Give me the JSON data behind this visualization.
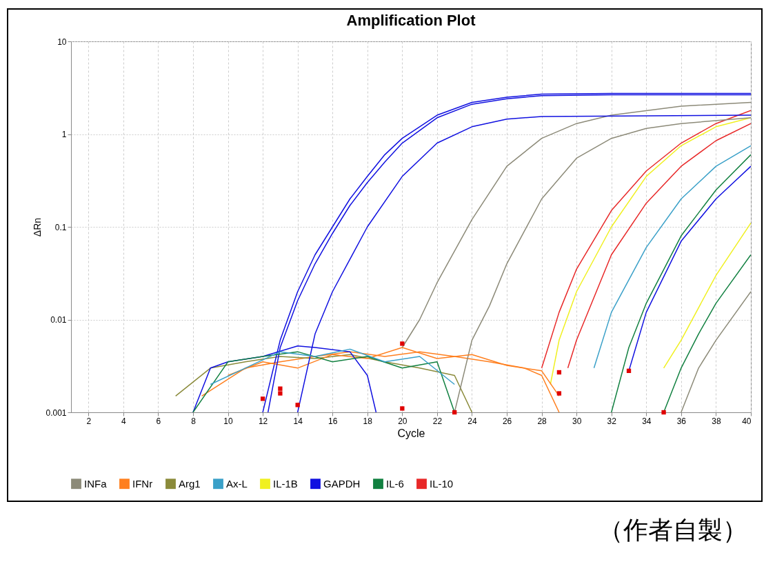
{
  "chart_data": {
    "type": "line",
    "title": "Amplification Plot",
    "xlabel": "Cycle",
    "ylabel": "ΔRn",
    "log": true,
    "grid": true,
    "legend": "bottom",
    "marker": "none",
    "line_style": "solid",
    "xlim": [
      1,
      40
    ],
    "xticks": [
      2,
      4,
      6,
      8,
      10,
      12,
      14,
      16,
      18,
      20,
      22,
      24,
      26,
      28,
      30,
      32,
      34,
      36,
      38,
      40
    ],
    "ylim": [
      0.001,
      10
    ],
    "yticks": [
      0.001,
      0.01,
      0.1,
      1,
      10
    ],
    "series": [
      {
        "name": "INFa",
        "color": "#8c8a78",
        "x": [
          20,
          21,
          22,
          24,
          26,
          28,
          30,
          32,
          36,
          40
        ],
        "values": [
          0.005,
          0.01,
          0.025,
          0.12,
          0.45,
          0.9,
          1.3,
          1.6,
          2.0,
          2.2
        ]
      },
      {
        "name": "IFNr",
        "color": "#ff7f1e",
        "x": [
          8.5,
          11,
          13,
          15,
          17,
          19,
          21,
          23,
          25,
          27,
          28,
          29
        ],
        "values": [
          0.0015,
          0.003,
          0.0035,
          0.004,
          0.0045,
          0.004,
          0.0045,
          0.004,
          0.0035,
          0.003,
          0.0025,
          0.001
        ]
      },
      {
        "name": "Arg1",
        "color": "#8a8a3a",
        "x": [
          7,
          9,
          11,
          13,
          15,
          17,
          19,
          21,
          23,
          24
        ],
        "values": [
          0.0015,
          0.003,
          0.0035,
          0.004,
          0.0038,
          0.0042,
          0.0035,
          0.003,
          0.0025,
          0.001
        ]
      },
      {
        "name": "Ax-L",
        "color": "#3aa0c8",
        "x": [
          31,
          32,
          34,
          36,
          38,
          40
        ],
        "values": [
          0.003,
          0.012,
          0.06,
          0.2,
          0.45,
          0.75
        ]
      },
      {
        "name": "IL-1B",
        "color": "#f0f020",
        "x": [
          28.5,
          29,
          30,
          32,
          34,
          36,
          38,
          40
        ],
        "values": [
          0.002,
          0.006,
          0.02,
          0.1,
          0.35,
          0.75,
          1.2,
          1.5
        ]
      },
      {
        "name": "GAPDH",
        "color": "#1010e0",
        "x": [
          12,
          13,
          14,
          15,
          16,
          17,
          18,
          19,
          20,
          22,
          24,
          26,
          28,
          32,
          40
        ],
        "values": [
          0.001,
          0.006,
          0.02,
          0.05,
          0.1,
          0.2,
          0.35,
          0.6,
          0.9,
          1.6,
          2.2,
          2.5,
          2.7,
          2.75,
          2.75
        ]
      },
      {
        "name": "IL-6",
        "color": "#118040",
        "x": [
          32,
          33,
          34,
          36,
          38,
          40
        ],
        "values": [
          0.001,
          0.005,
          0.015,
          0.08,
          0.25,
          0.6
        ]
      },
      {
        "name": "IL-10",
        "color": "#e82828",
        "x": [
          28,
          29,
          30,
          32,
          34,
          36,
          38,
          40
        ],
        "values": [
          0.003,
          0.012,
          0.035,
          0.15,
          0.4,
          0.8,
          1.3,
          1.8
        ]
      },
      {
        "color": "#8c8a78",
        "x": [
          23,
          24,
          25,
          26,
          28,
          30,
          32,
          34,
          36,
          40
        ],
        "values": [
          0.001,
          0.006,
          0.014,
          0.04,
          0.2,
          0.55,
          0.9,
          1.15,
          1.3,
          1.5
        ]
      },
      {
        "color": "#8c8a78",
        "x": [
          36,
          37,
          38,
          40
        ],
        "values": [
          0.001,
          0.003,
          0.006,
          0.02
        ]
      },
      {
        "color": "#ff7f1e",
        "x": [
          10,
          12,
          14,
          16,
          18,
          20,
          22,
          24,
          26,
          28,
          29
        ],
        "values": [
          0.0025,
          0.0035,
          0.003,
          0.0042,
          0.0038,
          0.005,
          0.0038,
          0.0042,
          0.0032,
          0.0028,
          0.0015
        ]
      },
      {
        "color": "#1010e0",
        "x": [
          12.3,
          13,
          14,
          15,
          16,
          17,
          18,
          19,
          20,
          22,
          24,
          26,
          28,
          32,
          40
        ],
        "values": [
          0.001,
          0.005,
          0.016,
          0.04,
          0.085,
          0.17,
          0.3,
          0.5,
          0.8,
          1.5,
          2.1,
          2.4,
          2.6,
          2.65,
          2.65
        ]
      },
      {
        "color": "#1010e0",
        "x": [
          14,
          15,
          16,
          18,
          20,
          22,
          24,
          26,
          28,
          40
        ],
        "values": [
          0.001,
          0.007,
          0.02,
          0.1,
          0.35,
          0.8,
          1.2,
          1.45,
          1.55,
          1.6
        ]
      },
      {
        "color": "#1010e0",
        "x": [
          33,
          34,
          36,
          38,
          40
        ],
        "values": [
          0.0028,
          0.012,
          0.07,
          0.2,
          0.45
        ]
      },
      {
        "color": "#1010e0",
        "x": [
          8,
          9,
          10,
          12,
          14,
          15,
          17,
          18,
          18.5
        ],
        "values": [
          0.001,
          0.003,
          0.0035,
          0.004,
          0.0052,
          0.005,
          0.0045,
          0.0025,
          0.001
        ]
      },
      {
        "color": "#e82828",
        "x": [
          29.5,
          30,
          32,
          34,
          36,
          38,
          40
        ],
        "values": [
          0.003,
          0.006,
          0.05,
          0.18,
          0.45,
          0.85,
          1.3
        ]
      },
      {
        "color": "#f0f020",
        "x": [
          35,
          36,
          38,
          40
        ],
        "values": [
          0.003,
          0.006,
          0.03,
          0.11
        ]
      },
      {
        "color": "#118040",
        "x": [
          35,
          36,
          37,
          38,
          40
        ],
        "values": [
          0.001,
          0.003,
          0.007,
          0.015,
          0.05
        ]
      },
      {
        "color": "#118040",
        "x": [
          8,
          10,
          12,
          14,
          16,
          18,
          20,
          22,
          23
        ],
        "values": [
          0.001,
          0.0035,
          0.004,
          0.0045,
          0.0035,
          0.004,
          0.003,
          0.0035,
          0.001
        ]
      },
      {
        "color": "#3aa0c8",
        "x": [
          9,
          11,
          13,
          15,
          17,
          19,
          21,
          23
        ],
        "values": [
          0.002,
          0.003,
          0.0045,
          0.004,
          0.0048,
          0.0035,
          0.004,
          0.002
        ]
      },
      {
        "type": "scatter",
        "marker": "square",
        "color": "#e00000",
        "x": [
          12,
          13,
          13,
          14,
          20,
          20,
          23,
          29,
          29,
          33,
          35
        ],
        "values": [
          0.0014,
          0.0018,
          0.0016,
          0.0012,
          0.0055,
          0.0011,
          0.001,
          0.0027,
          0.0016,
          0.0028,
          0.001
        ]
      }
    ],
    "annotations": [
      "（作者自製）"
    ]
  }
}
